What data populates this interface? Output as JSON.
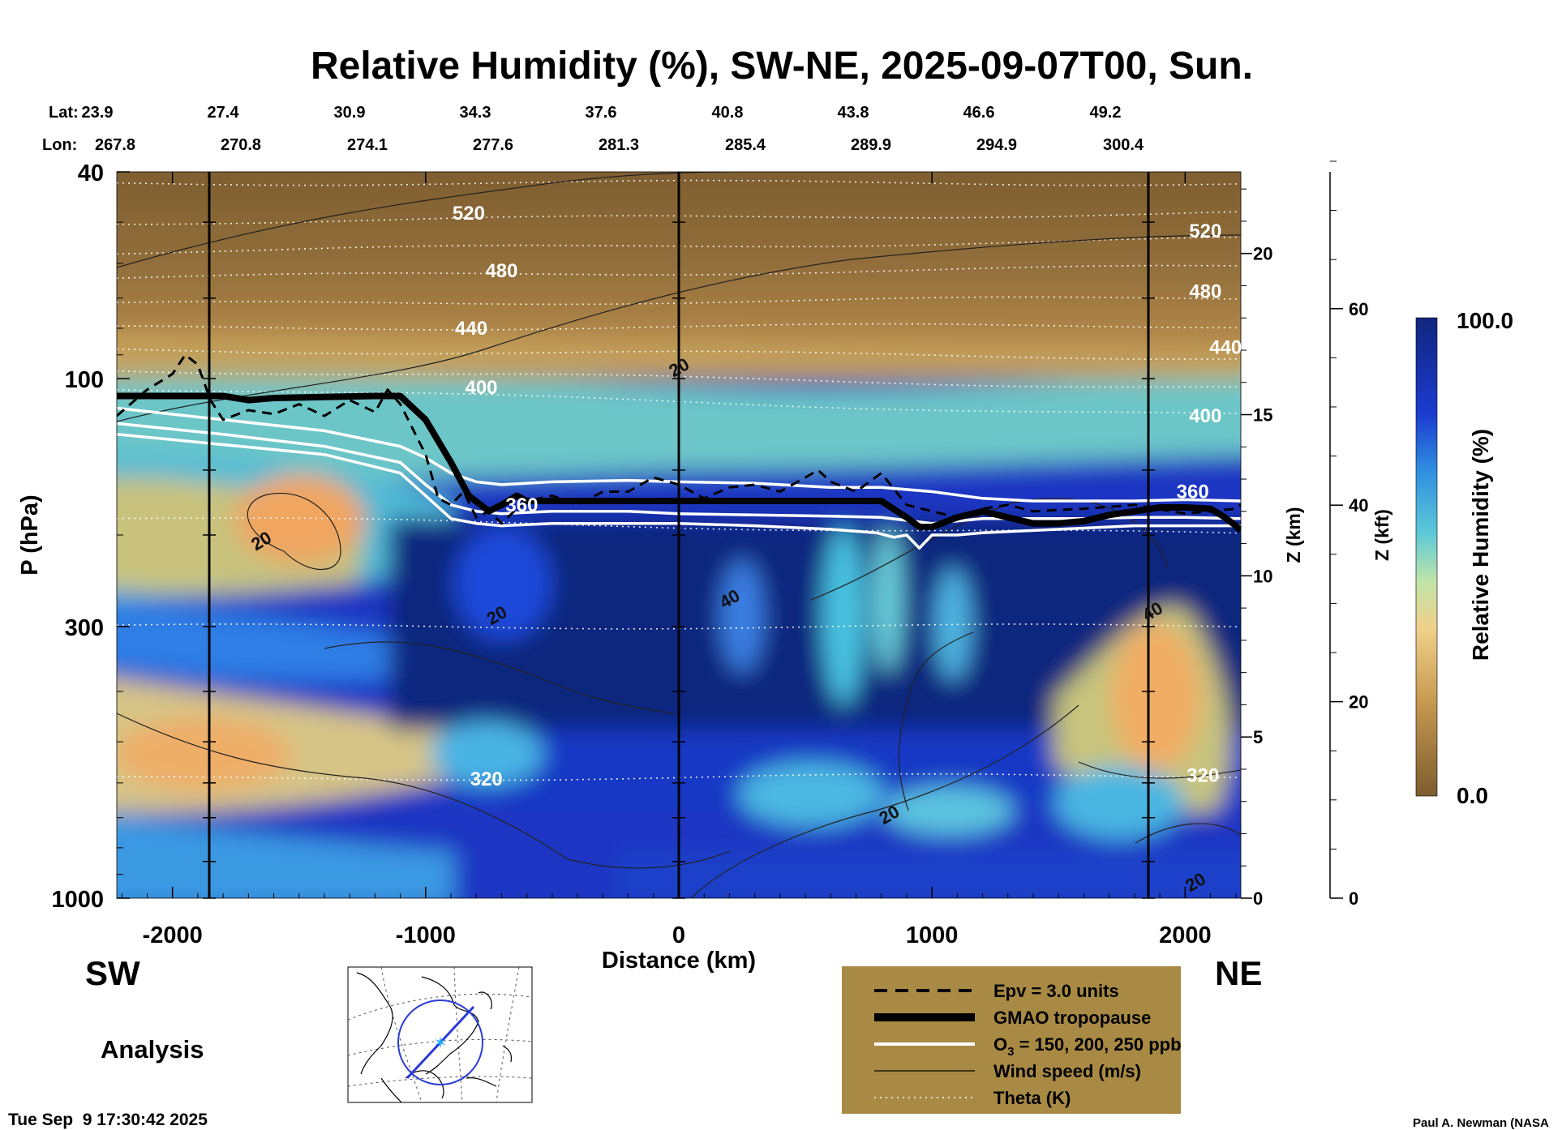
{
  "chart_data": {
    "type": "heatmap",
    "title": "Relative Humidity (%), SW-NE, 2025-09-07T00, Sun.",
    "lat_label": "Lat:",
    "lon_label": "Lon:",
    "lat": [
      "23.9",
      "27.4",
      "30.9",
      "34.3",
      "37.6",
      "40.8",
      "43.8",
      "46.6",
      "49.2"
    ],
    "lon": [
      "267.8",
      "270.8",
      "274.1",
      "277.6",
      "281.3",
      "285.4",
      "289.9",
      "294.9",
      "300.4"
    ],
    "xlabel": "Distance (km)",
    "ylabel": "P (hPa)",
    "z_km_label": "Z (km)",
    "z_kft_label": "Z (kft)",
    "xlim": [
      -2220,
      2220
    ],
    "ylim_hpa": [
      1000,
      40
    ],
    "y_log": true,
    "x_ticks": [
      {
        "v": -2000,
        "label": "-2000"
      },
      {
        "v": -1000,
        "label": "-1000"
      },
      {
        "v": 0,
        "label": "0"
      },
      {
        "v": 1000,
        "label": "1000"
      },
      {
        "v": 2000,
        "label": "2000"
      }
    ],
    "p_ticks": [
      {
        "v": 40,
        "label": "40"
      },
      {
        "v": 100,
        "label": "100"
      },
      {
        "v": 300,
        "label": "300"
      },
      {
        "v": 1000,
        "label": "1000"
      }
    ],
    "z_km_ticks": [
      {
        "v": 0,
        "label": "0"
      },
      {
        "v": 5,
        "label": "5"
      },
      {
        "v": 10,
        "label": "10"
      },
      {
        "v": 15,
        "label": "15"
      },
      {
        "v": 20,
        "label": "20"
      }
    ],
    "z_kft_ticks": [
      {
        "v": 0,
        "label": "0"
      },
      {
        "v": 20,
        "label": "20"
      },
      {
        "v": 40,
        "label": "40"
      },
      {
        "v": 60,
        "label": "60"
      }
    ],
    "colorbar": {
      "label": "Relative Humidity (%)",
      "min_label": "0.0",
      "max_label": "100.0",
      "min": 0,
      "max": 100
    },
    "colors": {
      "dry": "#7d5c2e",
      "mid_dry": "#e9b867",
      "mid": "#57c6dd",
      "moist": "#1f39c4",
      "saturated": "#10267e"
    },
    "rh_fields": [
      {
        "region": "stratosphere above 100 hPa",
        "rh": 5
      },
      {
        "region": "tropopause transition layer",
        "rh": 55
      },
      {
        "region": "SW upper troposphere 170-260 hPa",
        "rh": 30
      },
      {
        "region": "central and NE column 180-950 hPa",
        "rh": 95
      },
      {
        "region": "SW lower troposphere 500-800 hPa",
        "rh": 35
      },
      {
        "region": "NE lower troposphere 300-700 hPa",
        "rh": 35
      }
    ],
    "theta_labels": [
      {
        "text": "520",
        "x": -830,
        "p": 48
      },
      {
        "text": "480",
        "x": -700,
        "p": 62
      },
      {
        "text": "440",
        "x": -820,
        "p": 80
      },
      {
        "text": "400",
        "x": -780,
        "p": 104
      },
      {
        "text": "360",
        "x": -620,
        "p": 175
      },
      {
        "text": "320",
        "x": -760,
        "p": 590
      },
      {
        "text": "520",
        "x": 2080,
        "p": 52
      },
      {
        "text": "480",
        "x": 2080,
        "p": 68
      },
      {
        "text": "440",
        "x": 2160,
        "p": 87
      },
      {
        "text": "400",
        "x": 2080,
        "p": 118
      },
      {
        "text": "360",
        "x": 2030,
        "p": 165
      },
      {
        "text": "320",
        "x": 2070,
        "p": 580
      }
    ],
    "theta_levels_hpa_sw": [
      42,
      50,
      57,
      64,
      72,
      80,
      88,
      96,
      104,
      185,
      300,
      590
    ],
    "theta_levels_hpa_ne": [
      42,
      48,
      54,
      61,
      70,
      79,
      91,
      104,
      118,
      200,
      300,
      580
    ],
    "wind_labels": [
      {
        "text": "20",
        "x": 0,
        "p": 95
      },
      {
        "text": "20",
        "x": -1650,
        "p": 205
      },
      {
        "text": "20",
        "x": -720,
        "p": 285
      },
      {
        "text": "40",
        "x": 200,
        "p": 265
      },
      {
        "text": "40",
        "x": 1870,
        "p": 280
      },
      {
        "text": "20",
        "x": 830,
        "p": 690
      },
      {
        "text": "20",
        "x": 2040,
        "p": 930
      }
    ],
    "tropopause": {
      "x": [
        -2220,
        -1800,
        -1700,
        -1600,
        -1200,
        -1100,
        -1000,
        -900,
        -830,
        -750,
        -700,
        -640,
        -600,
        -400,
        -200,
        0,
        200,
        400,
        600,
        700,
        800,
        900,
        950,
        1000,
        1100,
        1200,
        1300,
        1400,
        1500,
        1600,
        1700,
        1800,
        1900,
        2000,
        2100,
        2150,
        2200,
        2220
      ],
      "p_hpa": [
        108,
        108,
        110,
        109,
        108,
        108,
        120,
        145,
        168,
        180,
        175,
        168,
        172,
        172,
        172,
        172,
        172,
        172,
        172,
        172,
        172,
        185,
        193,
        193,
        185,
        180,
        185,
        190,
        190,
        188,
        183,
        180,
        177,
        177,
        178,
        184,
        192,
        196
      ]
    },
    "ozone_150ppb": {
      "x": [
        -2220,
        -1800,
        -1400,
        -1100,
        -1000,
        -900,
        -800,
        -700,
        -500,
        -200,
        0,
        300,
        600,
        800,
        1000,
        1200,
        1400,
        1600,
        1800,
        2000,
        2220
      ],
      "p_hpa": [
        114,
        120,
        126,
        135,
        142,
        152,
        158,
        160,
        158,
        157,
        158,
        159,
        162,
        162,
        165,
        170,
        172,
        172,
        172,
        171,
        172
      ]
    },
    "ozone_200ppb": {
      "x": [
        -2220,
        -1800,
        -1400,
        -1100,
        -1000,
        -900,
        -800,
        -700,
        -500,
        -200,
        0,
        300,
        600,
        800,
        1000,
        1200,
        1400,
        1600,
        1800,
        2000,
        2220
      ],
      "p_hpa": [
        122,
        128,
        135,
        145,
        160,
        175,
        180,
        182,
        180,
        180,
        182,
        183,
        184,
        185,
        190,
        186,
        186,
        186,
        185,
        185,
        186
      ]
    },
    "ozone_250ppb": {
      "x": [
        -2220,
        -1800,
        -1400,
        -1100,
        -1000,
        -900,
        -800,
        -700,
        -500,
        -200,
        0,
        300,
        600,
        780,
        850,
        900,
        950,
        1000,
        1100,
        1200,
        1400,
        1600,
        1800,
        2000,
        2220
      ],
      "p_hpa": [
        128,
        134,
        140,
        152,
        168,
        186,
        190,
        192,
        190,
        190,
        190,
        192,
        195,
        198,
        202,
        200,
        212,
        200,
        200,
        198,
        196,
        194,
        192,
        192,
        192
      ]
    },
    "epv_3": {
      "x": [
        -2220,
        -2100,
        -2000,
        -1950,
        -1900,
        -1850,
        -1800,
        -1700,
        -1600,
        -1500,
        -1400,
        -1300,
        -1200,
        -1150,
        -1100,
        -1000,
        -950,
        -900,
        -850,
        -800,
        -750,
        -700,
        -650,
        -600,
        -500,
        -400,
        -300,
        -200,
        -100,
        0,
        100,
        200,
        300,
        400,
        500,
        550,
        600,
        700,
        800,
        900,
        1000,
        1100,
        1200,
        1300,
        1400,
        1600,
        1800,
        2000,
        2100,
        2200,
        2220
      ],
      "p_hpa": [
        118,
        105,
        98,
        90,
        94,
        110,
        120,
        115,
        117,
        112,
        118,
        110,
        116,
        105,
        112,
        140,
        170,
        175,
        165,
        185,
        180,
        190,
        180,
        172,
        168,
        175,
        165,
        165,
        155,
        160,
        170,
        162,
        160,
        165,
        155,
        150,
        158,
        165,
        152,
        175,
        180,
        185,
        178,
        175,
        180,
        178,
        175,
        182,
        180,
        178,
        175
      ]
    },
    "legend": [
      {
        "label": "Epv = 3.0 units",
        "style": "dashed"
      },
      {
        "label": "GMAO tropopause",
        "style": "thick"
      },
      {
        "label": "O",
        "sub": "3",
        "suffix": " = 150, 200, 250 ppb",
        "style": "white"
      },
      {
        "label": "Wind speed (m/s)",
        "style": "thin"
      },
      {
        "label": "Theta (K)",
        "style": "dotted"
      }
    ],
    "legend_bg": "#a98a44",
    "direction_left": "SW",
    "direction_right": "NE",
    "analysis_label": "Analysis",
    "timestamp": "Tue Sep  9 17:30:42 2025",
    "credit": "Paul A. Newman (NASA"
  }
}
